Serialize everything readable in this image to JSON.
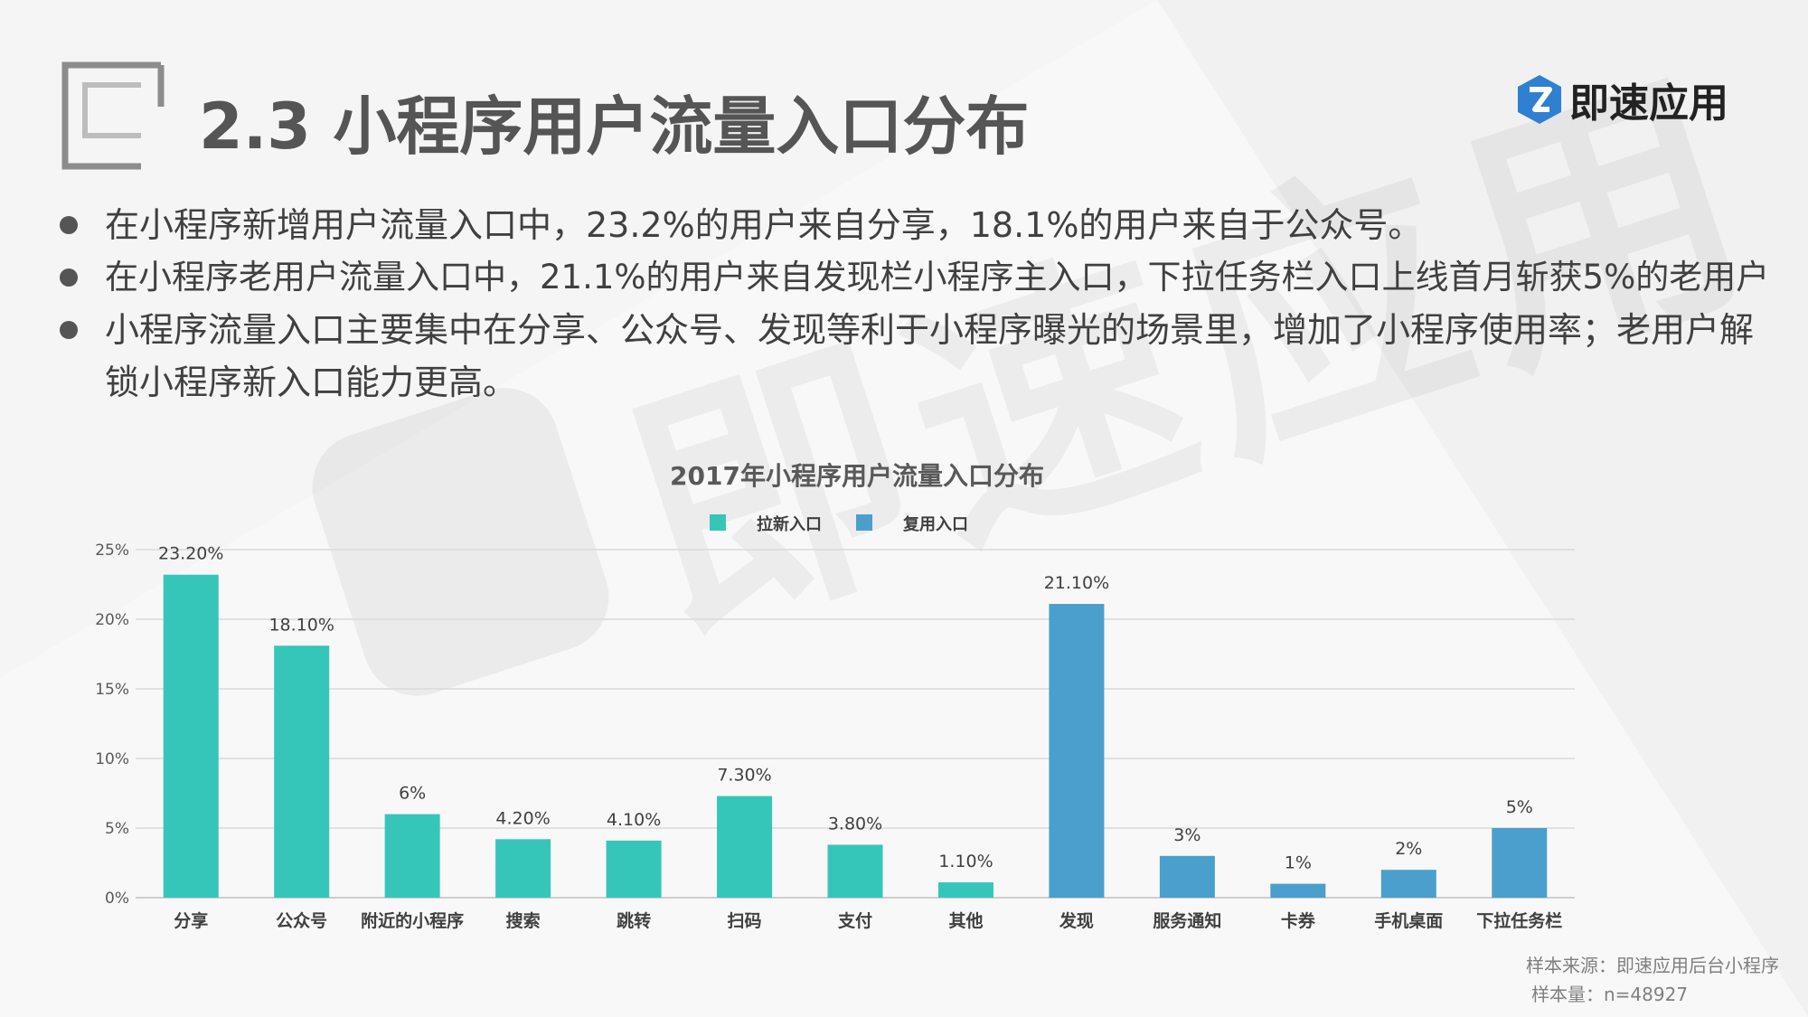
{
  "slide": {
    "title": "2.3 小程序用户流量入口分布",
    "logo_text": "即速应用",
    "watermark_text": "即速应用",
    "bullets": [
      "在小程序新增用户流量入口中，23.2%的用户来自分享，18.1%的用户来自于公众号。",
      "在小程序老用户流量入口中，21.1%的用户来自发现栏小程序主入口，下拉任务栏入口上线首月斩获5%的老用户",
      "小程序流量入口主要集中在分享、公众号、发现等利于小程序曝光的场景里，增加了小程序使用率；老用户解锁小程序新入口能力更高。"
    ],
    "source_line1": "样本来源：即速应用后台小程序",
    "source_line2": "样本量：n=48927",
    "colors": {
      "new_users": "#36c6b9",
      "returning_users": "#4a9fcc",
      "logo_blue": "#2f80d1"
    }
  },
  "chart_data": {
    "type": "bar",
    "title": "2017年小程序用户流量入口分布",
    "categories": [
      "分享",
      "公众号",
      "附近的小程序",
      "搜索",
      "跳转",
      "扫码",
      "支付",
      "其他",
      "发现",
      "服务通知",
      "卡券",
      "手机桌面",
      "下拉任务栏"
    ],
    "series": [
      {
        "name": "拉新入口",
        "color": "#36c6b9",
        "values": [
          23.2,
          18.1,
          6,
          4.2,
          4.1,
          7.3,
          3.8,
          1.1,
          null,
          null,
          null,
          null,
          null
        ]
      },
      {
        "name": "复用入口",
        "color": "#4a9fcc",
        "values": [
          null,
          null,
          null,
          null,
          null,
          null,
          null,
          null,
          21.1,
          3,
          1,
          2,
          5
        ]
      }
    ],
    "data_labels": [
      "23.20%",
      "18.10%",
      "6%",
      "4.20%",
      "4.10%",
      "7.30%",
      "3.80%",
      "1.10%",
      "21.10%",
      "3%",
      "1%",
      "2%",
      "5%"
    ],
    "yticks": [
      "0%",
      "5%",
      "10%",
      "15%",
      "20%",
      "25%"
    ],
    "ylim": [
      0,
      25
    ],
    "grid": true,
    "legend": "top-center"
  }
}
